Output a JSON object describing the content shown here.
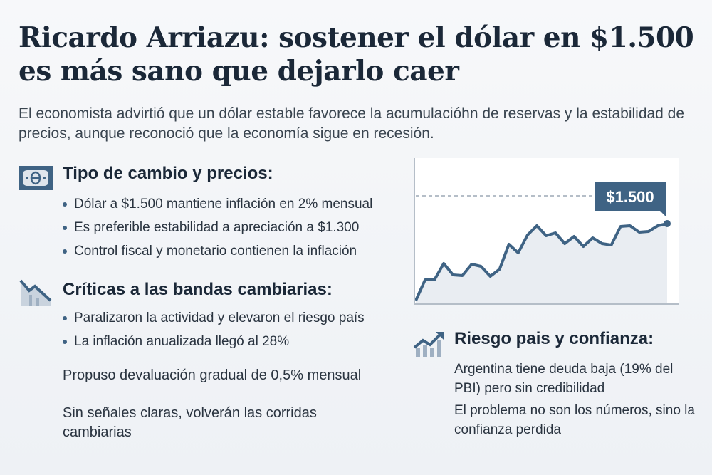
{
  "title": "Ricardo Arriazu: sostener el dólar en $1.500 es más sano que dejarlo caer",
  "subtitle": "El economista advirtió que un dólar estable favorece la acumulacióhn de reservas y la estabilidad de precios, aunque reconoció que la economía sigue en recesión.",
  "accent": "#3f6384",
  "sections": [
    {
      "heading": "Tipo de cambio y precios:",
      "icon": "banknote-icon",
      "items": [
        "Dólar a $1.500 mantiene inflación en 2% mensual",
        "Es preferible estabilidad a apreciación a $1.300",
        "Control fiscal y monetario contienen la inflación"
      ]
    },
    {
      "heading": "Críticas a las bandas cambiarias:",
      "icon": "chart-down-icon",
      "items": [
        "Paralizaron la actividad y elevaron el riesgo país",
        "La inflación anualizada llegó al 28%"
      ]
    },
    {
      "heading": "Riesgo pais y confianza:",
      "icon": "chart-up-icon",
      "items": [
        "Argentina tiene deuda baja (19% del PBI) pero sin credibilidad",
        "El problema no son los números, sino la confianza perdida"
      ]
    }
  ],
  "notes": [
    "Propuso devaluación gradual de 0,5% mensual",
    "Sin señales claras, volverán las corridas cambiarias"
  ],
  "chart_data": {
    "type": "area",
    "label": "$1.500",
    "reference_line": 152,
    "values": [
      5,
      34,
      34,
      57,
      41,
      40,
      56,
      53,
      39,
      49,
      84,
      72,
      97,
      110,
      96,
      100,
      85,
      95,
      81,
      93,
      85,
      83,
      109,
      110,
      101,
      102,
      110,
      113
    ],
    "ylim": [
      0,
      205
    ],
    "grid": false
  }
}
